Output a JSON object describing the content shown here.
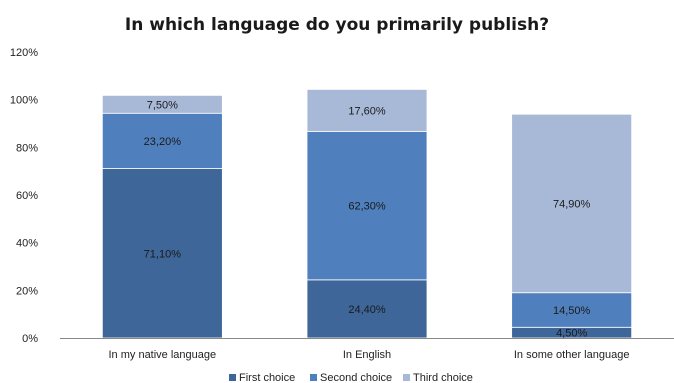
{
  "chart_data": {
    "type": "bar",
    "stacked": true,
    "title": "In which language do you primarily publish?",
    "xlabel": "",
    "ylabel": "",
    "ylim": [
      0,
      120
    ],
    "yticks": [
      0,
      20,
      40,
      60,
      80,
      100,
      120
    ],
    "ytick_suffix": "%",
    "grid": false,
    "legend_position": "bottom",
    "categories": [
      "In my native language",
      "In English",
      "In some other language"
    ],
    "series": [
      {
        "name": "First choice",
        "color": "#3e6699",
        "values": [
          71.1,
          24.4,
          4.5
        ],
        "labels": [
          "71,10%",
          "24,40%",
          "4,50%"
        ]
      },
      {
        "name": "Second choice",
        "color": "#4f80bd",
        "values": [
          23.2,
          62.3,
          14.5
        ],
        "labels": [
          "23,20%",
          "62,30%",
          "14,50%"
        ]
      },
      {
        "name": "Third choice",
        "color": "#a8b9d7",
        "values": [
          7.5,
          17.6,
          74.9
        ],
        "labels": [
          "7,50%",
          "17,60%",
          "74,90%"
        ]
      }
    ]
  }
}
